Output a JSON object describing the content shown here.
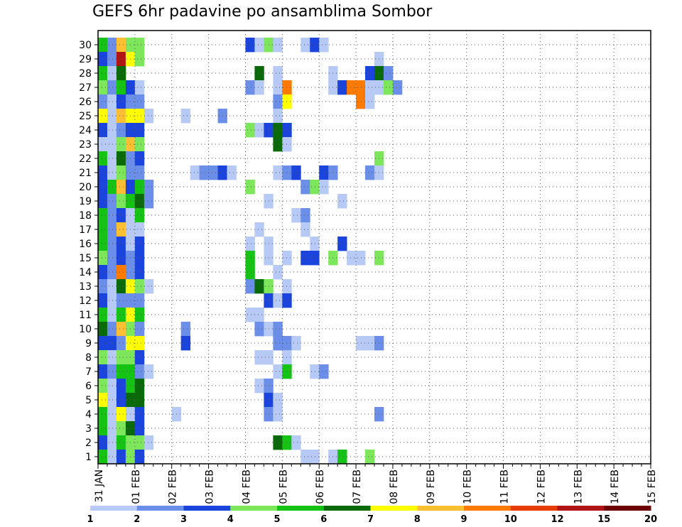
{
  "chart_data": {
    "type": "heatmap",
    "title": "GEFS 6hr padavine po ansamblima Sombor",
    "xlabel": "",
    "ylabel": "",
    "members": [
      1,
      2,
      3,
      4,
      5,
      6,
      7,
      8,
      9,
      10,
      11,
      12,
      13,
      14,
      15,
      16,
      17,
      18,
      19,
      20,
      21,
      22,
      23,
      24,
      25,
      26,
      27,
      28,
      29,
      30
    ],
    "x_tick_labels": [
      "31 JAN",
      "01 FEB",
      "02 FEB",
      "03 FEB",
      "04 FEB",
      "05 FEB",
      "06 FEB",
      "07 FEB",
      "08 FEB",
      "09 FEB",
      "10 FEB",
      "11 FEB",
      "12 FEB",
      "13 FEB",
      "14 FEB",
      "15 FEB"
    ],
    "x_range": [
      0,
      60
    ],
    "colorbar": {
      "labels": [
        "1",
        "2",
        "3",
        "4",
        "5",
        "6",
        "7",
        "8",
        "9",
        "10",
        "12",
        "15",
        "20"
      ],
      "colors": [
        "#b7c9f5",
        "#6b8ee8",
        "#1a44dc",
        "#7de65a",
        "#16c214",
        "#0a6a0a",
        "#ffff00",
        "#ffbf33",
        "#ff7a00",
        "#e63c00",
        "#b01414",
        "#6e0000"
      ]
    },
    "grid": true,
    "cells": [
      [
        "30",
        [
          [
            0,
            5
          ],
          [
            1,
            2
          ],
          [
            2,
            8
          ],
          [
            3,
            4
          ],
          [
            4,
            4
          ],
          [
            16,
            3
          ],
          [
            17,
            1
          ],
          [
            18,
            4
          ],
          [
            19,
            1
          ],
          [
            22,
            1
          ],
          [
            23,
            3
          ],
          [
            24,
            1
          ]
        ]
      ],
      [
        "29",
        [
          [
            0,
            3
          ],
          [
            1,
            2
          ],
          [
            2,
            11
          ],
          [
            3,
            7
          ],
          [
            4,
            4
          ],
          [
            30,
            1
          ]
        ]
      ],
      [
        "28",
        [
          [
            0,
            5
          ],
          [
            1,
            1
          ],
          [
            2,
            6
          ],
          [
            17,
            6
          ],
          [
            19,
            1
          ],
          [
            25,
            1
          ],
          [
            29,
            3
          ],
          [
            30,
            6
          ],
          [
            31,
            2
          ]
        ]
      ],
      [
        "27",
        [
          [
            0,
            4
          ],
          [
            1,
            2
          ],
          [
            2,
            5
          ],
          [
            3,
            3
          ],
          [
            4,
            1
          ],
          [
            16,
            2
          ],
          [
            17,
            1
          ],
          [
            19,
            1
          ],
          [
            20,
            9
          ],
          [
            25,
            1
          ],
          [
            26,
            3
          ],
          [
            27,
            9
          ],
          [
            28,
            9
          ],
          [
            29,
            1
          ],
          [
            30,
            1
          ],
          [
            31,
            4
          ],
          [
            32,
            2
          ]
        ]
      ],
      [
        "26",
        [
          [
            0,
            2
          ],
          [
            1,
            1
          ],
          [
            2,
            3
          ],
          [
            3,
            2
          ],
          [
            4,
            2
          ],
          [
            19,
            2
          ],
          [
            20,
            7
          ],
          [
            28,
            9
          ],
          [
            29,
            1
          ]
        ]
      ],
      [
        "25",
        [
          [
            0,
            7
          ],
          [
            1,
            1
          ],
          [
            2,
            8
          ],
          [
            3,
            7
          ],
          [
            4,
            7
          ],
          [
            5,
            1
          ],
          [
            9,
            1
          ],
          [
            13,
            2
          ],
          [
            19,
            1
          ]
        ]
      ],
      [
        "24",
        [
          [
            0,
            3
          ],
          [
            1,
            1
          ],
          [
            2,
            2
          ],
          [
            3,
            3
          ],
          [
            4,
            3
          ],
          [
            16,
            4
          ],
          [
            17,
            1
          ],
          [
            18,
            3
          ],
          [
            19,
            6
          ],
          [
            20,
            3
          ]
        ]
      ],
      [
        "23",
        [
          [
            0,
            1
          ],
          [
            1,
            1
          ],
          [
            2,
            4
          ],
          [
            3,
            8
          ],
          [
            4,
            4
          ],
          [
            19,
            6
          ],
          [
            20,
            1
          ]
        ]
      ],
      [
        "22",
        [
          [
            0,
            5
          ],
          [
            1,
            1
          ],
          [
            2,
            6
          ],
          [
            3,
            2
          ],
          [
            4,
            3
          ],
          [
            30,
            4
          ]
        ]
      ],
      [
        "21",
        [
          [
            0,
            3
          ],
          [
            1,
            1
          ],
          [
            2,
            4
          ],
          [
            3,
            2
          ],
          [
            4,
            2
          ],
          [
            10,
            1
          ],
          [
            11,
            2
          ],
          [
            12,
            2
          ],
          [
            13,
            3
          ],
          [
            14,
            1
          ],
          [
            19,
            1
          ],
          [
            20,
            2
          ],
          [
            21,
            3
          ],
          [
            24,
            3
          ],
          [
            25,
            2
          ],
          [
            29,
            2
          ],
          [
            30,
            1
          ]
        ]
      ],
      [
        "20",
        [
          [
            0,
            3
          ],
          [
            1,
            5
          ],
          [
            2,
            8
          ],
          [
            3,
            3
          ],
          [
            4,
            5
          ],
          [
            5,
            2
          ],
          [
            16,
            4
          ],
          [
            22,
            2
          ],
          [
            23,
            4
          ],
          [
            24,
            1
          ]
        ]
      ],
      [
        "19",
        [
          [
            0,
            3
          ],
          [
            1,
            2
          ],
          [
            2,
            4
          ],
          [
            3,
            5
          ],
          [
            4,
            6
          ],
          [
            5,
            2
          ],
          [
            18,
            1
          ],
          [
            26,
            1
          ]
        ]
      ],
      [
        "18",
        [
          [
            0,
            5
          ],
          [
            1,
            2
          ],
          [
            2,
            3
          ],
          [
            3,
            1
          ],
          [
            4,
            5
          ],
          [
            21,
            1
          ],
          [
            22,
            2
          ]
        ]
      ],
      [
        "17",
        [
          [
            0,
            5
          ],
          [
            1,
            2
          ],
          [
            2,
            8
          ],
          [
            3,
            1
          ],
          [
            4,
            1
          ],
          [
            17,
            1
          ],
          [
            22,
            1
          ]
        ]
      ],
      [
        "16",
        [
          [
            0,
            5
          ],
          [
            1,
            2
          ],
          [
            2,
            3
          ],
          [
            3,
            1
          ],
          [
            4,
            3
          ],
          [
            16,
            1
          ],
          [
            18,
            1
          ],
          [
            23,
            1
          ],
          [
            26,
            3
          ]
        ]
      ],
      [
        "15",
        [
          [
            0,
            4
          ],
          [
            1,
            2
          ],
          [
            2,
            3
          ],
          [
            3,
            2
          ],
          [
            4,
            3
          ],
          [
            16,
            5
          ],
          [
            18,
            1
          ],
          [
            20,
            1
          ],
          [
            22,
            3
          ],
          [
            23,
            3
          ],
          [
            25,
            4
          ],
          [
            27,
            1
          ],
          [
            28,
            1
          ],
          [
            30,
            4
          ]
        ]
      ],
      [
        "14",
        [
          [
            0,
            3
          ],
          [
            1,
            2
          ],
          [
            2,
            9
          ],
          [
            3,
            2
          ],
          [
            4,
            3
          ],
          [
            16,
            5
          ],
          [
            19,
            1
          ]
        ]
      ],
      [
        "13",
        [
          [
            0,
            2
          ],
          [
            1,
            1
          ],
          [
            2,
            6
          ],
          [
            3,
            7
          ],
          [
            4,
            4
          ],
          [
            5,
            1
          ],
          [
            16,
            2
          ],
          [
            17,
            6
          ],
          [
            18,
            4
          ],
          [
            20,
            1
          ]
        ]
      ],
      [
        "12",
        [
          [
            0,
            3
          ],
          [
            1,
            1
          ],
          [
            2,
            2
          ],
          [
            3,
            2
          ],
          [
            4,
            2
          ],
          [
            18,
            3
          ],
          [
            19,
            1
          ],
          [
            20,
            3
          ]
        ]
      ],
      [
        "11",
        [
          [
            0,
            5
          ],
          [
            1,
            1
          ],
          [
            2,
            5
          ],
          [
            3,
            7
          ],
          [
            4,
            5
          ],
          [
            16,
            1
          ],
          [
            17,
            1
          ]
        ]
      ],
      [
        "10",
        [
          [
            0,
            6
          ],
          [
            1,
            2
          ],
          [
            2,
            8
          ],
          [
            3,
            4
          ],
          [
            4,
            2
          ],
          [
            9,
            2
          ],
          [
            17,
            2
          ],
          [
            18,
            1
          ],
          [
            19,
            2
          ]
        ]
      ],
      [
        "9",
        [
          [
            0,
            3
          ],
          [
            1,
            3
          ],
          [
            2,
            2
          ],
          [
            3,
            7
          ],
          [
            4,
            7
          ],
          [
            9,
            3
          ],
          [
            19,
            2
          ],
          [
            20,
            2
          ],
          [
            21,
            1
          ],
          [
            28,
            1
          ],
          [
            29,
            1
          ],
          [
            30,
            2
          ]
        ]
      ],
      [
        "8",
        [
          [
            0,
            4
          ],
          [
            1,
            1
          ],
          [
            2,
            4
          ],
          [
            3,
            4
          ],
          [
            4,
            3
          ],
          [
            17,
            1
          ],
          [
            18,
            1
          ],
          [
            20,
            1
          ]
        ]
      ],
      [
        "7",
        [
          [
            0,
            3
          ],
          [
            1,
            2
          ],
          [
            2,
            5
          ],
          [
            3,
            5
          ],
          [
            4,
            2
          ],
          [
            5,
            1
          ],
          [
            19,
            1
          ],
          [
            20,
            5
          ],
          [
            23,
            1
          ],
          [
            24,
            2
          ]
        ]
      ],
      [
        "6",
        [
          [
            0,
            4
          ],
          [
            1,
            1
          ],
          [
            2,
            3
          ],
          [
            3,
            5
          ],
          [
            4,
            6
          ],
          [
            17,
            1
          ],
          [
            18,
            2
          ]
        ]
      ],
      [
        "5",
        [
          [
            0,
            7
          ],
          [
            1,
            1
          ],
          [
            2,
            3
          ],
          [
            3,
            6
          ],
          [
            4,
            6
          ],
          [
            18,
            3
          ],
          [
            19,
            1
          ]
        ]
      ],
      [
        "4",
        [
          [
            0,
            5
          ],
          [
            1,
            1
          ],
          [
            2,
            7
          ],
          [
            3,
            1
          ],
          [
            4,
            3
          ],
          [
            8,
            1
          ],
          [
            18,
            2
          ],
          [
            19,
            1
          ],
          [
            30,
            2
          ]
        ]
      ],
      [
        "3",
        [
          [
            0,
            5
          ],
          [
            1,
            1
          ],
          [
            2,
            4
          ],
          [
            3,
            6
          ],
          [
            4,
            3
          ]
        ]
      ],
      [
        "2",
        [
          [
            0,
            3
          ],
          [
            1,
            1
          ],
          [
            2,
            5
          ],
          [
            3,
            4
          ],
          [
            4,
            4
          ],
          [
            5,
            1
          ],
          [
            19,
            6
          ],
          [
            20,
            5
          ],
          [
            21,
            1
          ]
        ]
      ],
      [
        "1",
        [
          [
            0,
            5
          ],
          [
            1,
            1
          ],
          [
            2,
            3
          ],
          [
            3,
            4
          ],
          [
            4,
            3
          ],
          [
            22,
            1
          ],
          [
            23,
            1
          ],
          [
            25,
            1
          ],
          [
            26,
            5
          ],
          [
            29,
            4
          ]
        ]
      ]
    ]
  }
}
